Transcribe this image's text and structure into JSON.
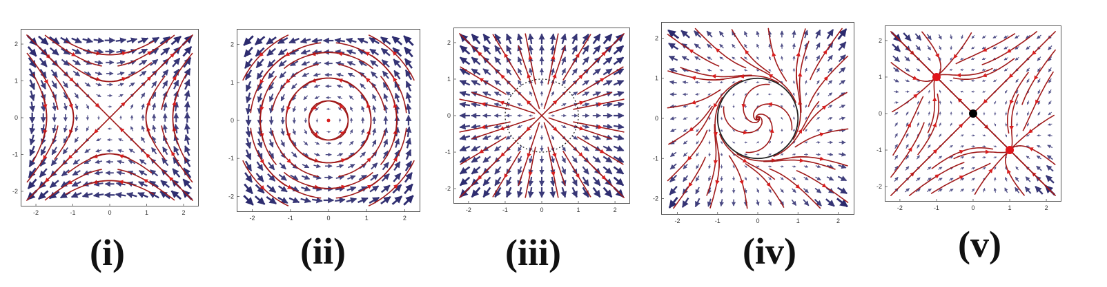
{
  "figure": {
    "colors": {
      "frame": "#555555",
      "tick_text": "#333333",
      "field_arrow": "#2b2a6e",
      "stream": "#a01919",
      "stream_arrow": "#d81e1e",
      "circle": "#222222",
      "equilibrium_red": "#e0151b",
      "equilibrium_black": "#000000"
    },
    "panels": [
      {
        "id": "i",
        "caption": "(i)",
        "pattern": "saddle",
        "x_ticks": [
          "-2",
          "-1",
          "0",
          "1",
          "2"
        ],
        "y_ticks": [
          "2",
          "1",
          "0",
          "-1",
          "-2"
        ]
      },
      {
        "id": "ii",
        "caption": "(ii)",
        "pattern": "center",
        "x_ticks": [
          "-2",
          "-1",
          "0",
          "1",
          "2"
        ],
        "y_ticks": [
          "2",
          "1",
          "0",
          "-1",
          "-2"
        ]
      },
      {
        "id": "iii",
        "caption": "(iii)",
        "pattern": "radial-with-dotted-circle",
        "x_ticks": [
          "-2",
          "-1",
          "0",
          "1",
          "2"
        ],
        "y_ticks": [
          "2",
          "1",
          "0",
          "-1",
          "-2"
        ]
      },
      {
        "id": "iv",
        "caption": "(iv)",
        "pattern": "spiral-with-circle",
        "x_ticks": [
          "-2",
          "-1",
          "0",
          "1",
          "2"
        ],
        "y_ticks": [
          "2",
          "1",
          "0",
          "-1",
          "-2"
        ]
      },
      {
        "id": "v",
        "caption": "(v)",
        "pattern": "diagonal-with-equilibria",
        "x_ticks": [
          "-2",
          "-1",
          "0",
          "1",
          "2"
        ],
        "y_ticks": [
          "2",
          "1",
          "0",
          "-1",
          "-2"
        ],
        "equilibria": [
          {
            "x": -1,
            "y": 1,
            "color": "red"
          },
          {
            "x": 0,
            "y": 0,
            "color": "black"
          },
          {
            "x": 1,
            "y": -1,
            "color": "red"
          }
        ]
      }
    ]
  }
}
